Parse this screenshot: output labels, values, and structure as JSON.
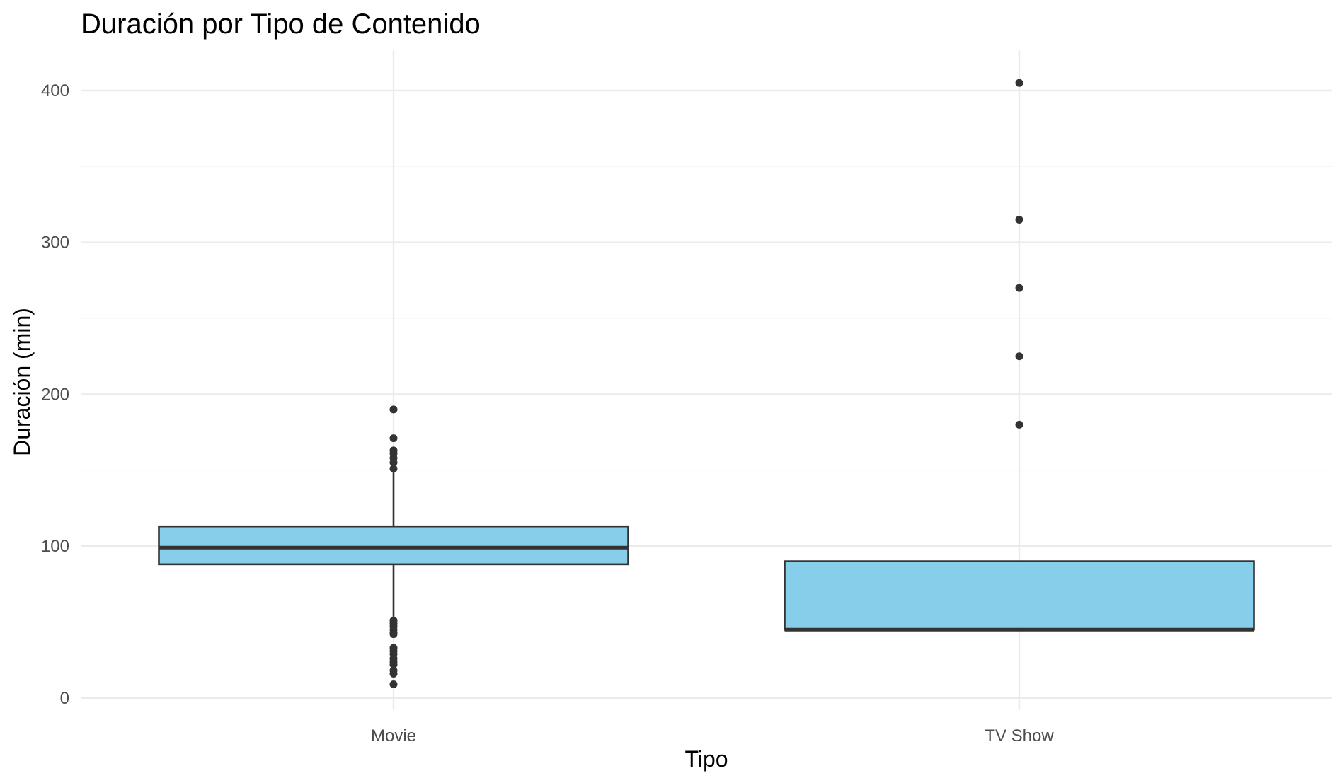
{
  "chart_data": {
    "type": "boxplot",
    "title": "Duración por Tipo de Contenido",
    "xlabel": "Tipo",
    "ylabel": "Duración (min)",
    "ylim": [
      -8,
      427
    ],
    "y_ticks": [
      0,
      100,
      200,
      300,
      400
    ],
    "y_tick_labels": [
      "0",
      "100",
      "200",
      "300",
      "400"
    ],
    "categories": [
      "Movie",
      "TV Show"
    ],
    "grid": true,
    "legend": "none",
    "colors": {
      "box_fill": "#87CEEB",
      "box_stroke": "#333333",
      "grid_major": "#ebebeb",
      "grid_minor": "#f5f5f5",
      "background": "#ffffff"
    },
    "boxes": [
      {
        "category": "Movie",
        "whisker_low": 52,
        "q1": 88,
        "median": 99,
        "q3": 113,
        "whisker_high": 150,
        "outliers": [
          190,
          171,
          163,
          161,
          158,
          155,
          151,
          51,
          49,
          47,
          45,
          43,
          42,
          33,
          31,
          29,
          26,
          24,
          22,
          18,
          16,
          9
        ]
      },
      {
        "category": "TV Show",
        "whisker_low": 45,
        "q1": 45,
        "median": 45,
        "q3": 90,
        "whisker_high": 90,
        "outliers": [
          405,
          315,
          270,
          225,
          180
        ]
      }
    ]
  }
}
